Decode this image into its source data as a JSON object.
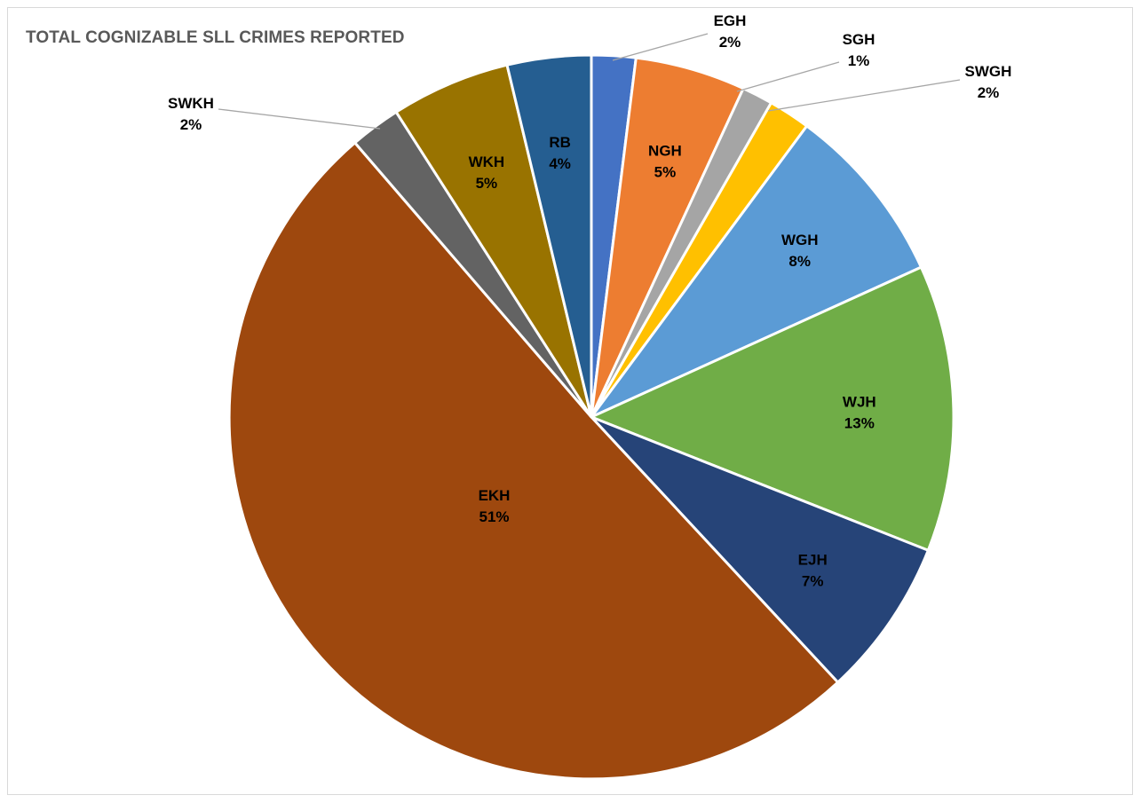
{
  "chart_data": {
    "type": "pie",
    "title": "TOTAL COGNIZABLE SLL CRIMES REPORTED",
    "start_angle_deg": 0,
    "direction": "clockwise",
    "legend": "none",
    "data_labels": "category name and percentage",
    "slices": [
      {
        "name": "EGH",
        "label": "EGH",
        "percent_label": "2%",
        "value": 2.0,
        "color": "#4472c4",
        "label_mode": "outside"
      },
      {
        "name": "NGH",
        "label": "NGH",
        "percent_label": "5%",
        "value": 5.0,
        "color": "#ed7d31",
        "label_mode": "inside"
      },
      {
        "name": "SGH",
        "label": "SGH",
        "percent_label": "1%",
        "value": 1.4,
        "color": "#a5a5a5",
        "label_mode": "outside"
      },
      {
        "name": "SWGH",
        "label": "SWGH",
        "percent_label": "2%",
        "value": 1.9,
        "color": "#ffc000",
        "label_mode": "outside"
      },
      {
        "name": "WGH",
        "label": "WGH",
        "percent_label": "8%",
        "value": 8.2,
        "color": "#5b9bd5",
        "label_mode": "inside"
      },
      {
        "name": "WJH",
        "label": "WJH",
        "percent_label": "13%",
        "value": 13.0,
        "color": "#70ad47",
        "label_mode": "inside"
      },
      {
        "name": "EJH",
        "label": "EJH",
        "percent_label": "7%",
        "value": 7.2,
        "color": "#264478",
        "label_mode": "inside"
      },
      {
        "name": "EKH",
        "label": "EKH",
        "percent_label": "51%",
        "value": 51.4,
        "color": "#9e480e",
        "label_mode": "inside"
      },
      {
        "name": "SWKH",
        "label": "SWKH",
        "percent_label": "2%",
        "value": 2.3,
        "color": "#636363",
        "label_mode": "outside"
      },
      {
        "name": "WKH",
        "label": "WKH",
        "percent_label": "5%",
        "value": 5.4,
        "color": "#997300",
        "label_mode": "inside"
      },
      {
        "name": "RB",
        "label": "RB",
        "percent_label": "4%",
        "value": 3.8,
        "color": "#255e91",
        "label_mode": "inside"
      }
    ]
  }
}
